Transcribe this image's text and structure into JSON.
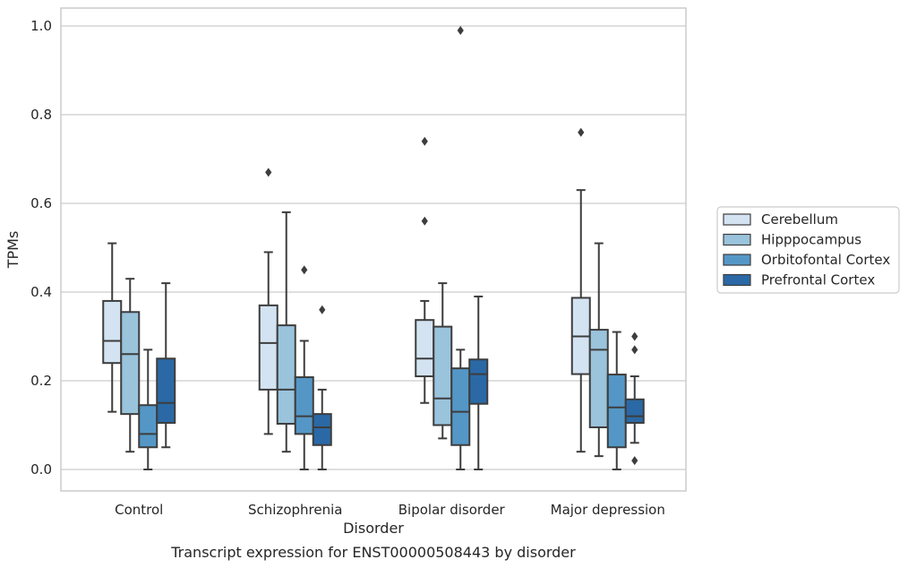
{
  "chart_data": {
    "type": "box",
    "xlabel": "Disorder",
    "ylabel": "TPMs",
    "caption": "Transcript expression for ENST00000508443 by disorder",
    "ylim": [
      -0.05,
      1.04
    ],
    "yticks": [
      "0.0",
      "0.2",
      "0.4",
      "0.6",
      "0.8",
      "1.0"
    ],
    "grid": true,
    "legend_position": "right",
    "categories": [
      "Control",
      "Schizophrenia",
      "Bipolar disorder",
      "Major depression"
    ],
    "series": [
      {
        "name": "Cerebellum",
        "color": "#d3e3f2",
        "boxes": [
          {
            "whislo": 0.13,
            "q1": 0.24,
            "med": 0.29,
            "q3": 0.38,
            "whishi": 0.51,
            "fliers": []
          },
          {
            "whislo": 0.08,
            "q1": 0.18,
            "med": 0.285,
            "q3": 0.37,
            "whishi": 0.49,
            "fliers": [
              0.67
            ]
          },
          {
            "whislo": 0.15,
            "q1": 0.21,
            "med": 0.25,
            "q3": 0.337,
            "whishi": 0.38,
            "fliers": [
              0.56,
              0.74
            ]
          },
          {
            "whislo": 0.04,
            "q1": 0.215,
            "med": 0.3,
            "q3": 0.387,
            "whishi": 0.63,
            "fliers": [
              0.76
            ]
          }
        ]
      },
      {
        "name": "Hipppocampus",
        "color": "#9ac3dc",
        "boxes": [
          {
            "whislo": 0.04,
            "q1": 0.125,
            "med": 0.26,
            "q3": 0.355,
            "whishi": 0.43,
            "fliers": []
          },
          {
            "whislo": 0.04,
            "q1": 0.103,
            "med": 0.18,
            "q3": 0.325,
            "whishi": 0.58,
            "fliers": []
          },
          {
            "whislo": 0.07,
            "q1": 0.1,
            "med": 0.16,
            "q3": 0.322,
            "whishi": 0.42,
            "fliers": []
          },
          {
            "whislo": 0.03,
            "q1": 0.095,
            "med": 0.27,
            "q3": 0.315,
            "whishi": 0.51,
            "fliers": []
          }
        ]
      },
      {
        "name": "Orbitofontal Cortex",
        "color": "#5497c6",
        "boxes": [
          {
            "whislo": 0.0,
            "q1": 0.05,
            "med": 0.08,
            "q3": 0.145,
            "whishi": 0.27,
            "fliers": []
          },
          {
            "whislo": 0.0,
            "q1": 0.08,
            "med": 0.12,
            "q3": 0.208,
            "whishi": 0.29,
            "fliers": [
              0.45
            ]
          },
          {
            "whislo": 0.0,
            "q1": 0.055,
            "med": 0.13,
            "q3": 0.228,
            "whishi": 0.27,
            "fliers": [
              0.99
            ]
          },
          {
            "whislo": 0.0,
            "q1": 0.05,
            "med": 0.14,
            "q3": 0.214,
            "whishi": 0.31,
            "fliers": []
          }
        ]
      },
      {
        "name": "Prefrontal Cortex",
        "color": "#2a69a6",
        "boxes": [
          {
            "whislo": 0.05,
            "q1": 0.105,
            "med": 0.15,
            "q3": 0.25,
            "whishi": 0.42,
            "fliers": []
          },
          {
            "whislo": 0.0,
            "q1": 0.055,
            "med": 0.095,
            "q3": 0.125,
            "whishi": 0.18,
            "fliers": [
              0.36
            ]
          },
          {
            "whislo": 0.0,
            "q1": 0.148,
            "med": 0.215,
            "q3": 0.248,
            "whishi": 0.39,
            "fliers": []
          },
          {
            "whislo": 0.06,
            "q1": 0.105,
            "med": 0.12,
            "q3": 0.158,
            "whishi": 0.21,
            "fliers": [
              0.02,
              0.27,
              0.3
            ]
          }
        ]
      }
    ]
  }
}
